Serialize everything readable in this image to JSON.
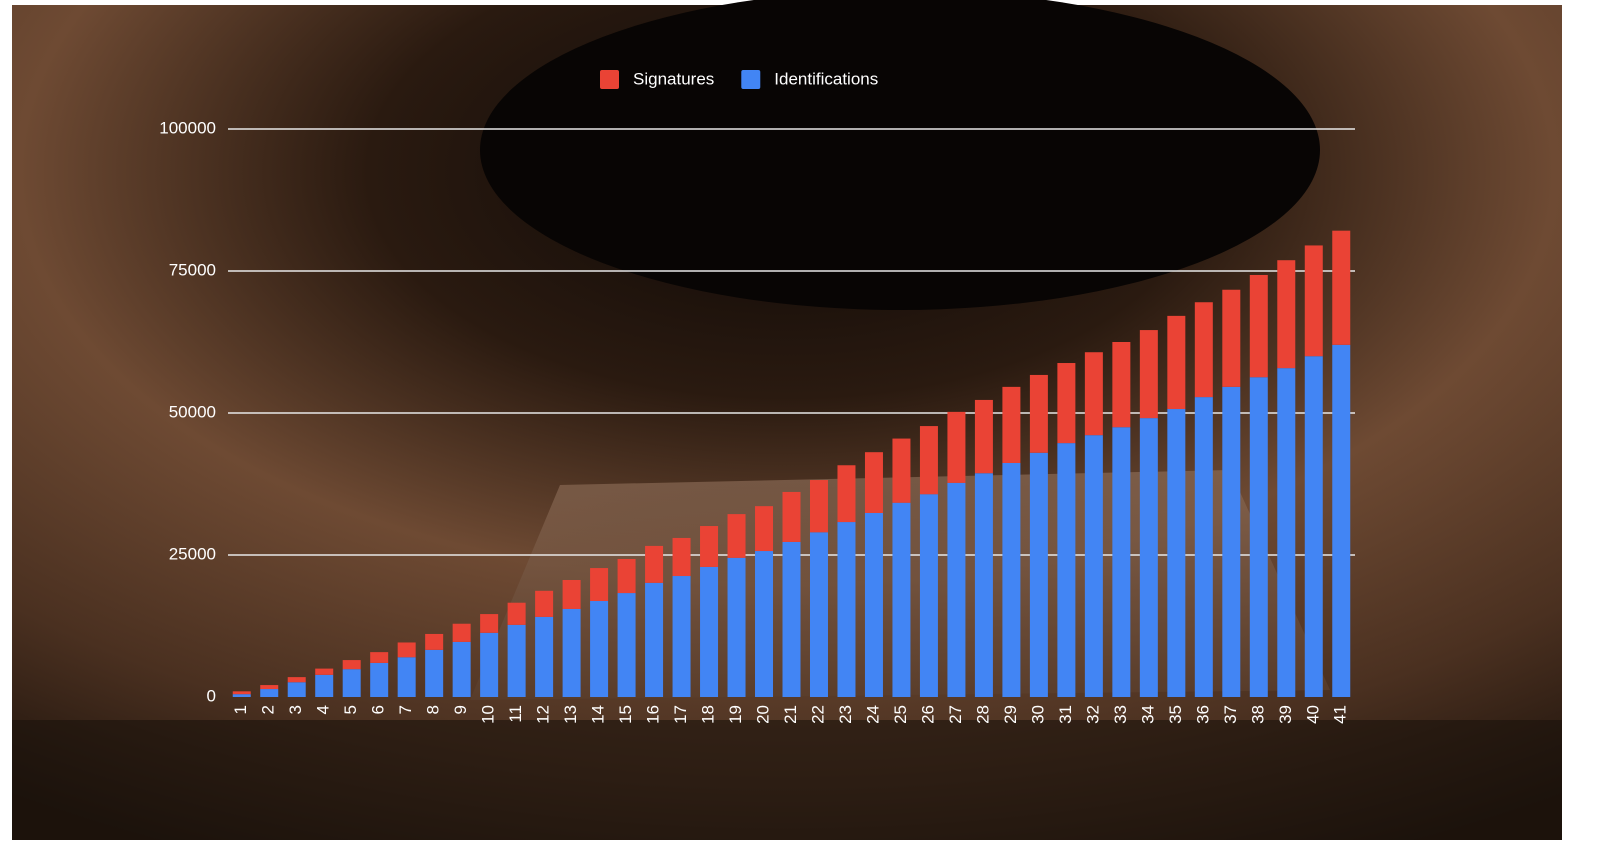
{
  "chart_data": {
    "type": "stacked-bar",
    "categories": [
      "1",
      "2",
      "3",
      "4",
      "5",
      "6",
      "7",
      "8",
      "9",
      "10",
      "11",
      "12",
      "13",
      "14",
      "15",
      "16",
      "17",
      "18",
      "19",
      "20",
      "21",
      "22",
      "23",
      "24",
      "25",
      "26",
      "27",
      "28",
      "29",
      "30",
      "31",
      "32",
      "33",
      "34",
      "35",
      "36",
      "37",
      "38",
      "39",
      "40",
      "41"
    ],
    "series": [
      {
        "name": "Identifications",
        "color": "#4285f4",
        "values": [
          500,
          1400,
          2600,
          3900,
          4900,
          6000,
          7000,
          8300,
          9700,
          11300,
          12700,
          14100,
          15500,
          16900,
          18300,
          20100,
          21300,
          22900,
          24500,
          25700,
          27300,
          29000,
          30800,
          32400,
          34200,
          35700,
          37700,
          39400,
          41200,
          43000,
          44700,
          46100,
          47500,
          49100,
          50700,
          52800,
          54600,
          56300,
          57900,
          60000,
          62000
        ]
      },
      {
        "name": "Signatures",
        "color": "#ea4335",
        "values": [
          500,
          700,
          900,
          1100,
          1600,
          1900,
          2600,
          2800,
          3200,
          3300,
          3900,
          4600,
          5100,
          5800,
          6000,
          6500,
          6700,
          7200,
          7700,
          7900,
          8800,
          9200,
          10000,
          10700,
          11300,
          12000,
          12500,
          12900,
          13400,
          13700,
          14100,
          14600,
          15000,
          15500,
          16400,
          16700,
          17100,
          18000,
          19000,
          19500,
          20100
        ]
      }
    ],
    "legend_order": [
      1,
      0
    ],
    "ylim": [
      0,
      100000
    ],
    "yticks": [
      0,
      25000,
      50000,
      75000,
      100000
    ],
    "grid": true
  }
}
